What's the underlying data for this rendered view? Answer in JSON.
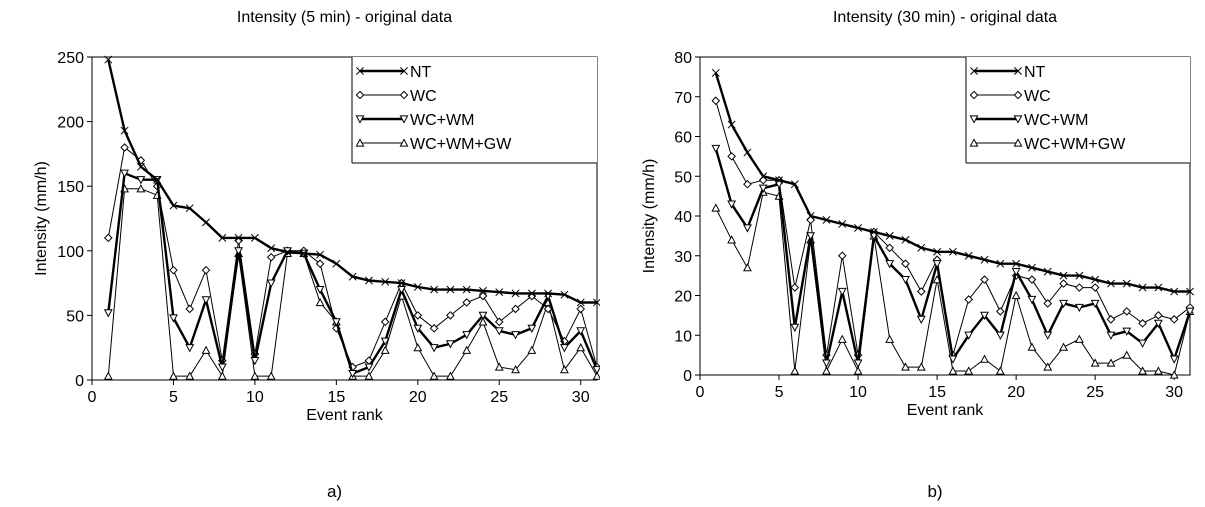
{
  "chart_data": [
    {
      "type": "line",
      "title": "Intensity (5 min) - original data",
      "xlabel": "Event rank",
      "ylabel": "Intensity (mm/h)",
      "xlim": [
        0,
        31
      ],
      "ylim": [
        0,
        250
      ],
      "xticks": [
        0,
        5,
        10,
        15,
        20,
        25,
        30
      ],
      "yticks": [
        0,
        50,
        100,
        150,
        200,
        250
      ],
      "panel_label": "a)",
      "legend_position": "top-right",
      "x": [
        1,
        2,
        3,
        4,
        5,
        6,
        7,
        8,
        9,
        10,
        11,
        12,
        13,
        14,
        15,
        16,
        17,
        18,
        19,
        20,
        21,
        22,
        23,
        24,
        25,
        26,
        27,
        28,
        29,
        30,
        31
      ],
      "series": [
        {
          "name": "NT",
          "marker": "x",
          "bold": true,
          "values": [
            248,
            193,
            165,
            155,
            135,
            133,
            122,
            110,
            110,
            110,
            102,
            99,
            98,
            97,
            90,
            80,
            77,
            76,
            75,
            72,
            70,
            70,
            70,
            69,
            68,
            67,
            67,
            67,
            66,
            60,
            60
          ]
        },
        {
          "name": "WC",
          "marker": "diamond",
          "bold": false,
          "values": [
            110,
            180,
            170,
            150,
            85,
            55,
            85,
            15,
            108,
            20,
            95,
            100,
            100,
            90,
            40,
            10,
            15,
            45,
            75,
            50,
            40,
            50,
            60,
            65,
            45,
            55,
            65,
            55,
            30,
            55,
            10
          ]
        },
        {
          "name": "WC+WM",
          "marker": "tri-down",
          "bold": true,
          "values": [
            52,
            160,
            155,
            155,
            48,
            25,
            62,
            10,
            100,
            15,
            75,
            100,
            98,
            70,
            45,
            5,
            10,
            30,
            70,
            40,
            25,
            28,
            35,
            50,
            38,
            35,
            40,
            65,
            25,
            38,
            8
          ]
        },
        {
          "name": "WC+WM+GW",
          "marker": "tri-up",
          "bold": false,
          "values": [
            3,
            148,
            148,
            143,
            3,
            3,
            23,
            3,
            98,
            3,
            3,
            98,
            98,
            60,
            45,
            3,
            3,
            23,
            65,
            25,
            3,
            3,
            23,
            45,
            10,
            8,
            23,
            60,
            8,
            25,
            3
          ]
        }
      ]
    },
    {
      "type": "line",
      "title": "Intensity (30 min) - original data",
      "xlabel": "Event rank",
      "ylabel": "Intensity (mm/h)",
      "xlim": [
        0,
        31
      ],
      "ylim": [
        0,
        80
      ],
      "xticks": [
        0,
        5,
        10,
        15,
        20,
        25,
        30
      ],
      "yticks": [
        0,
        10,
        20,
        30,
        40,
        50,
        60,
        70,
        80
      ],
      "panel_label": "b)",
      "legend_position": "top-right",
      "x": [
        1,
        2,
        3,
        4,
        5,
        6,
        7,
        8,
        9,
        10,
        11,
        12,
        13,
        14,
        15,
        16,
        17,
        18,
        19,
        20,
        21,
        22,
        23,
        24,
        25,
        26,
        27,
        28,
        29,
        30,
        31
      ],
      "series": [
        {
          "name": "NT",
          "marker": "x",
          "bold": true,
          "values": [
            76,
            63,
            56,
            50,
            49,
            48,
            40,
            39,
            38,
            37,
            36,
            35,
            34,
            32,
            31,
            31,
            30,
            29,
            28,
            28,
            27,
            26,
            25,
            25,
            24,
            23,
            23,
            22,
            22,
            21,
            21
          ]
        },
        {
          "name": "WC",
          "marker": "diamond",
          "bold": false,
          "values": [
            69,
            55,
            48,
            49,
            49,
            22,
            39,
            5,
            30,
            5,
            36,
            32,
            28,
            21,
            29,
            5,
            19,
            24,
            16,
            25,
            24,
            18,
            23,
            22,
            22,
            14,
            16,
            13,
            15,
            14,
            17
          ]
        },
        {
          "name": "WC+WM",
          "marker": "tri-down",
          "bold": true,
          "values": [
            57,
            43,
            37,
            47,
            48,
            12,
            35,
            3,
            21,
            3,
            35,
            28,
            24,
            14,
            28,
            4,
            10,
            15,
            10,
            26,
            19,
            10,
            18,
            17,
            18,
            10,
            11,
            8,
            13,
            4,
            16
          ]
        },
        {
          "name": "WC+WM+GW",
          "marker": "tri-up",
          "bold": false,
          "values": [
            42,
            34,
            27,
            46,
            45,
            1,
            34,
            1,
            9,
            1,
            35,
            9,
            2,
            2,
            24,
            1,
            1,
            4,
            1,
            20,
            7,
            2,
            7,
            9,
            3,
            3,
            5,
            1,
            1,
            0,
            16
          ]
        }
      ]
    }
  ]
}
